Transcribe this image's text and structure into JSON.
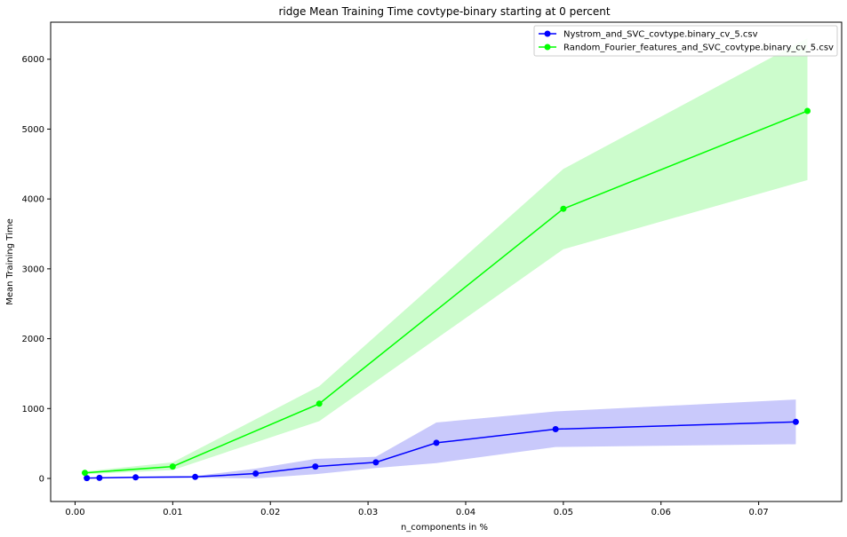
{
  "chart_data": {
    "type": "line",
    "title": "ridge Mean Training Time covtype-binary starting at 0 percent",
    "xlabel": "n_components in %",
    "ylabel": "Mean Training Time",
    "xlim": [
      -0.0025,
      0.0785
    ],
    "ylim": [
      -330,
      6530
    ],
    "xticks": [
      {
        "value": 0.0,
        "label": "0.00"
      },
      {
        "value": 0.01,
        "label": "0.01"
      },
      {
        "value": 0.02,
        "label": "0.02"
      },
      {
        "value": 0.03,
        "label": "0.03"
      },
      {
        "value": 0.04,
        "label": "0.04"
      },
      {
        "value": 0.05,
        "label": "0.05"
      },
      {
        "value": 0.06,
        "label": "0.06"
      },
      {
        "value": 0.07,
        "label": "0.07"
      }
    ],
    "yticks": [
      {
        "value": 0,
        "label": "0"
      },
      {
        "value": 1000,
        "label": "1000"
      },
      {
        "value": 2000,
        "label": "2000"
      },
      {
        "value": 3000,
        "label": "3000"
      },
      {
        "value": 4000,
        "label": "4000"
      },
      {
        "value": 5000,
        "label": "5000"
      },
      {
        "value": 6000,
        "label": "6000"
      }
    ],
    "grid": false,
    "legend_position": "top-right",
    "series": [
      {
        "name": "Nystrom_and_SVC_covtype.binary_cv_5.csv",
        "color": "#0000ff",
        "band_color": "#c9c9fb",
        "x": [
          0.0012,
          0.0025,
          0.0062,
          0.0123,
          0.0185,
          0.0246,
          0.0308,
          0.037,
          0.0492,
          0.0738
        ],
        "y": [
          5,
          8,
          15,
          22,
          70,
          170,
          230,
          510,
          705,
          810
        ],
        "lower": [
          0,
          0,
          5,
          10,
          0,
          60,
          150,
          220,
          450,
          490
        ],
        "upper": [
          10,
          16,
          25,
          35,
          140,
          280,
          310,
          800,
          960,
          1130
        ]
      },
      {
        "name": "Random_Fourier_features_and_SVC_covtype.binary_cv_5.csv",
        "color": "#00ff00",
        "band_color": "#ccfccc",
        "x": [
          0.001,
          0.01,
          0.025,
          0.05,
          0.075
        ],
        "y": [
          80,
          170,
          1070,
          3860,
          5260
        ],
        "lower": [
          60,
          120,
          820,
          3280,
          4270
        ],
        "upper": [
          100,
          230,
          1320,
          4430,
          6300
        ]
      }
    ]
  }
}
